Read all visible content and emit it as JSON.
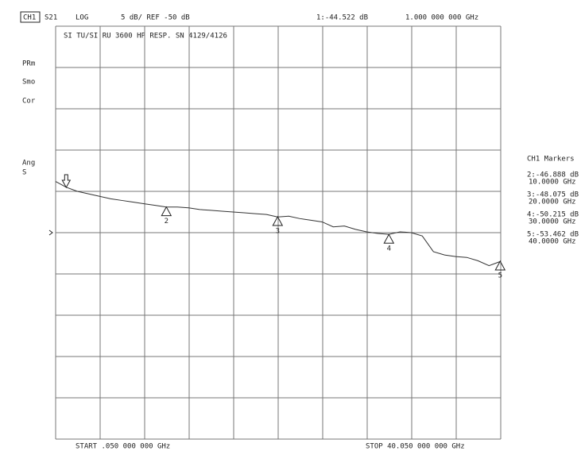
{
  "chart_data": {
    "type": "line",
    "channel": "CH1",
    "parameter": "S21",
    "format": "LOG",
    "scale_ref": "5 dB/ REF -50 dB",
    "active_marker": "1:-44.522 dB",
    "active_marker_freq": "1.000 000 000 GHz",
    "title": "SI TU/SI RU 3600 HP RESP.  SN 4129/4126",
    "status_labels": [
      "PRm",
      "Smo",
      "Cor",
      "Ang",
      "S"
    ],
    "marker_panel_title": "CH1 Markers",
    "marker_readouts": [
      {
        "value": "2:-46.888 dB",
        "freq": "10.0000 GHz"
      },
      {
        "value": "3:-48.075 dB",
        "freq": "20.0000 GHz"
      },
      {
        "value": "4:-50.215 dB",
        "freq": "30.0000 GHz"
      },
      {
        "value": "5:-53.462 dB",
        "freq": "40.0000 GHz"
      }
    ],
    "start_label": "START .050 000 000 GHz",
    "stop_label": "STOP 40.050 000 000 GHz",
    "x": [
      0.05,
      1,
      2,
      3,
      4,
      5,
      6,
      7,
      8,
      9,
      10,
      11,
      12,
      13,
      14,
      15,
      16,
      17,
      18,
      19,
      20,
      21,
      22,
      23,
      24,
      25,
      26,
      27,
      28,
      29,
      30,
      31,
      32,
      33,
      34,
      35,
      36,
      37,
      38,
      39,
      40,
      40.05
    ],
    "series": [
      {
        "color": "#333333",
        "values": [
          -43.8,
          -44.5,
          -45.0,
          -45.3,
          -45.6,
          -45.9,
          -46.1,
          -46.3,
          -46.5,
          -46.7,
          -46.9,
          -46.9,
          -47.0,
          -47.2,
          -47.3,
          -47.4,
          -47.5,
          -47.6,
          -47.7,
          -47.8,
          -48.1,
          -48.0,
          -48.3,
          -48.5,
          -48.7,
          -49.3,
          -49.2,
          -49.6,
          -49.9,
          -50.1,
          -50.2,
          -49.9,
          -50.0,
          -50.4,
          -52.3,
          -52.7,
          -52.9,
          -53.0,
          -53.4,
          -54.0,
          -53.5,
          -53.4
        ]
      }
    ],
    "xlim": [
      0.05,
      40.05
    ],
    "ylim": [
      -75,
      -25
    ],
    "reference_level": -50,
    "grid": true,
    "markers": [
      {
        "x": 1,
        "y": -44.522,
        "active": true
      },
      {
        "x": 10,
        "y": -46.888,
        "label": "2"
      },
      {
        "x": 20,
        "y": -48.075,
        "label": "3"
      },
      {
        "x": 30,
        "y": -50.215,
        "label": "4"
      },
      {
        "x": 40,
        "y": -53.462,
        "label": "5"
      }
    ]
  }
}
